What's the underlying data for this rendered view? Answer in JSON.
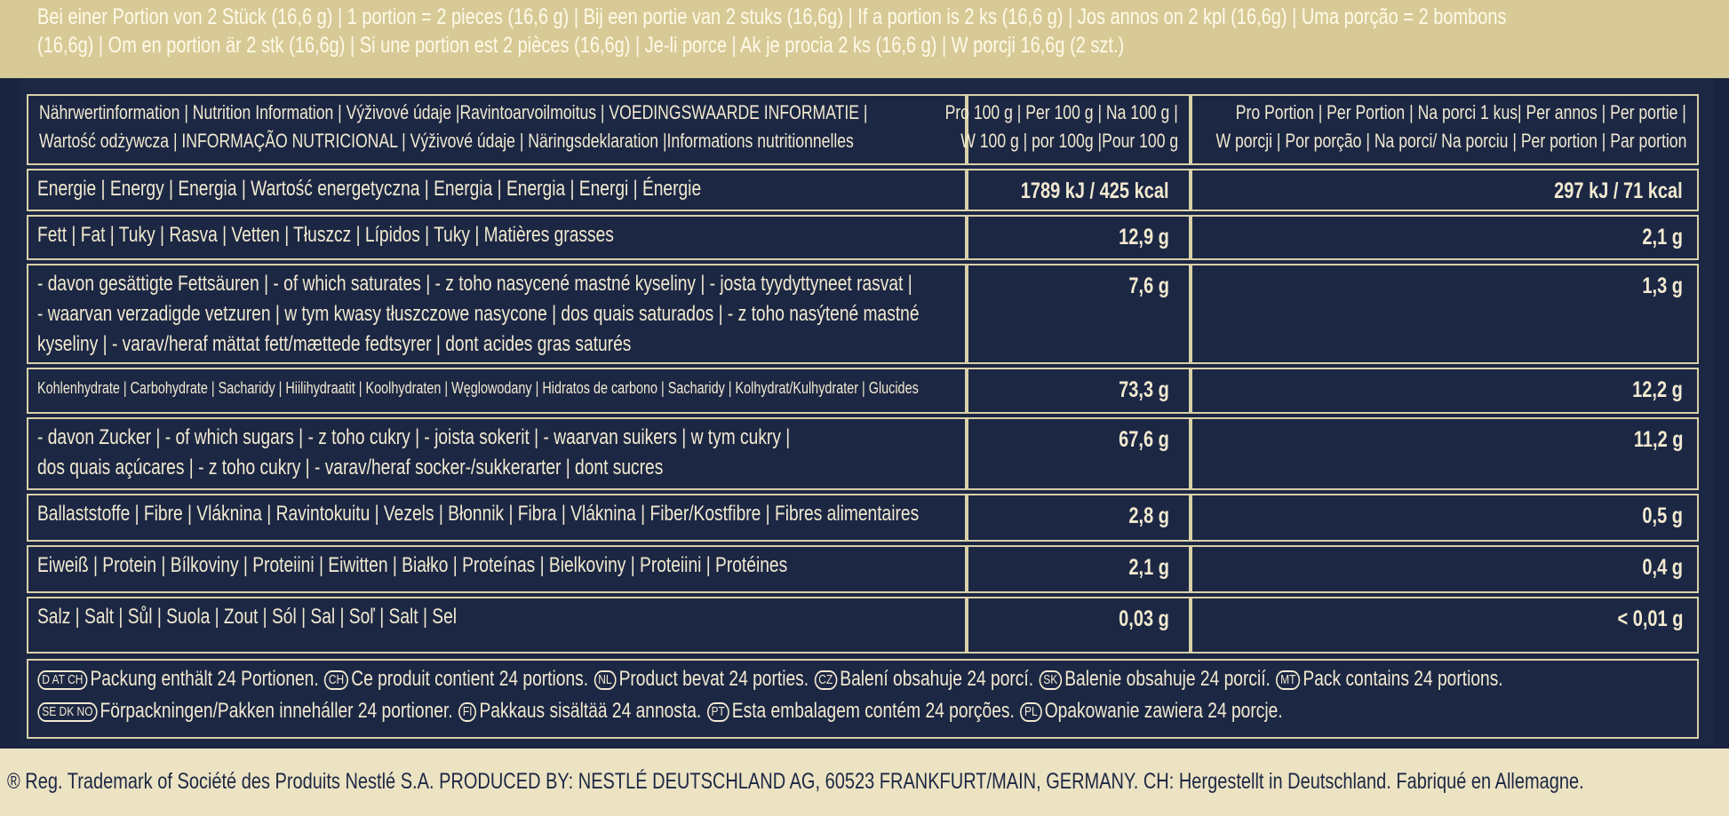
{
  "header": {
    "lines": [
      "Bei einer Portion von 2 Stück (16,6 g) | 1 portion = 2 pieces (16,6 g) | Bij een portie van 2 stuks (16,6g) | If a portion is 2 ks (16,6 g) | Jos annos on 2 kpl (16,6g) | Uma porção = 2 bombons",
      "(16,6g) | Om en portion är 2 stk (16,6g) | Si une portion est 2 pièces (16,6g) | Je-li porce | Ak je procia 2 ks (16,6 g) | W porcji 16,6g (2 szt.)"
    ]
  },
  "table": {
    "head": {
      "label": [
        "Nährwertinformation | Nutrition Information | Výživové údaje |Ravintoarvoilmoitus | VOEDINGSWAARDE INFORMATIE |",
        "Wartość odżywcza | INFORMAÇÃO NUTRICIONAL | Výživové údaje | Näringsdeklaration |Informations nutritionnelles"
      ],
      "per100": [
        "Pro 100 g | Per 100 g | Na 100 g |",
        "W 100 g | por 100g |Pour 100 g"
      ],
      "portion": [
        "Pro Portion | Per Portion | Na porci 1 kus| Per annos | Per portie |",
        "W porcji | Por porção | Na porci/ Na porciu | Per portion | Par portion"
      ]
    },
    "rows": [
      {
        "label": [
          "Energie | Energy | Energia | Wartość energetyczna | Energia | Energia | Energi | Énergie"
        ],
        "per100": "1789 kJ / 425 kcal",
        "portion": "297 kJ / 71 kcal"
      },
      {
        "label": [
          "Fett | Fat | Tuky | Rasva | Vetten | Tłuszcz | Lípidos | Tuky | Matières grasses"
        ],
        "per100": "12,9 g",
        "portion": "2,1 g"
      },
      {
        "label": [
          "- davon gesättigte Fettsäuren | - of which saturates | - z toho nasycené mastné kyseliny | - josta tyydyttyneet rasvat |",
          "- waarvan verzadigde vetzuren | w tym kwasy tłuszczowe nasycone | dos quais saturados | - z toho nasýtené mastné",
          "kyseliny | - varav/heraf mättat fett/mættede fedtsyrer | dont acides gras saturés"
        ],
        "per100": "7,6 g",
        "portion": "1,3 g"
      },
      {
        "label": [
          "Kohlenhydrate | Carbohydrate | Sacharidy | Hiilihydraatit | Koolhydraten | Węglowodany | Hidratos de carbono | Sacharidy | Kolhydrat/Kulhydrater | Glucides"
        ],
        "per100": "73,3 g",
        "portion": "12,2 g"
      },
      {
        "label": [
          "- davon Zucker | - of which sugars | - z toho cukry | - joista sokerit | - waarvan suikers | w tym cukry |",
          "dos quais açúcares | - z toho cukry | - varav/heraf socker-/sukkerarter | dont sucres"
        ],
        "per100": "67,6 g",
        "portion": "11,2 g"
      },
      {
        "label": [
          "Ballaststoffe | Fibre | Vláknina | Ravintokuitu | Vezels | Błonnik | Fibra | Vláknina | Fiber/Kostfibre | Fibres alimentaires"
        ],
        "per100": "2,8 g",
        "portion": "0,5 g"
      },
      {
        "label": [
          "Eiweiß | Protein | Bílkoviny | Proteiini | Eiwitten | Białko | Proteínas | Bielkoviny | Proteiini | Protéines"
        ],
        "per100": "2,1 g",
        "portion": "0,4 g"
      },
      {
        "label": [
          "Salz | Salt | Sůl | Suola | Zout | Sól | Sal | Soľ | Salt | Sel"
        ],
        "per100": "0,03 g",
        "portion": "< 0,01 g"
      }
    ]
  },
  "footer": {
    "lines": [
      [
        {
          "codes": "D AT CH",
          "text": "Packung enthält 24 Portionen."
        },
        {
          "codes": "CH",
          "text": "Ce produit contient 24 portions."
        },
        {
          "codes": "NL",
          "text": "Product bevat 24 porties."
        },
        {
          "codes": "CZ",
          "text": "Balení obsahuje 24 porcí."
        },
        {
          "codes": "SK",
          "text": "Balenie obsahuje 24 porcií."
        },
        {
          "codes": "MT",
          "text": "Pack contains 24 portions."
        }
      ],
      [
        {
          "codes": "SE DK NO",
          "text": "Förpackningen/Pakken inneháller 24 portioner."
        },
        {
          "codes": "FI",
          "text": "Pakkaus sisältää 24 annosta."
        },
        {
          "codes": "PT",
          "text": "Esta embalagem contém 24 porções."
        },
        {
          "codes": "PL",
          "text": "Opakowanie zawiera 24 porcje."
        }
      ]
    ],
    "trademark": "® Reg. Trademark of Société des Produits Nestlé S.A.  PRODUCED BY: NESTLÉ DEUTSCHLAND AG, 60523 FRANKFURT/MAIN, GERMANY.  CH: Hergestellt in Deutschland. Fabriqué en Allemagne."
  }
}
